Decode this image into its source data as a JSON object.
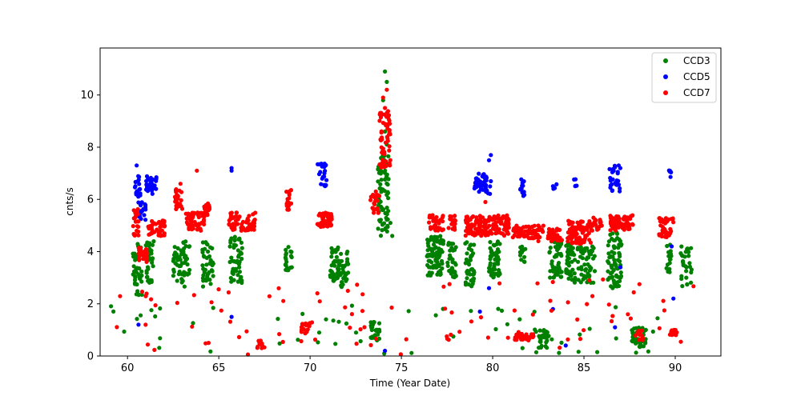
{
  "chart_data": {
    "type": "scatter",
    "title": "",
    "xlabel": "Time (Year Date)",
    "ylabel": "cnts/s",
    "xlim": [
      58.5,
      92.5
    ],
    "ylim": [
      0,
      11.8
    ],
    "xticks": [
      60,
      65,
      70,
      75,
      80,
      85,
      90
    ],
    "yticks": [
      0,
      2,
      4,
      6,
      8,
      10
    ],
    "grid": false,
    "legend_position": "top-right",
    "series": [
      {
        "name": "CCD3",
        "color": "#008000",
        "clusters": [
          {
            "x": [
              60.3,
              60.8
            ],
            "y": [
              2.3,
              4.4
            ],
            "n": 40
          },
          {
            "x": [
              61.0,
              61.5
            ],
            "y": [
              2.8,
              4.4
            ],
            "n": 35
          },
          {
            "x": [
              62.5,
              63.0
            ],
            "y": [
              2.8,
              4.2
            ],
            "n": 30
          },
          {
            "x": [
              63.0,
              63.4
            ],
            "y": [
              2.6,
              4.4
            ],
            "n": 25
          },
          {
            "x": [
              64.1,
              64.7
            ],
            "y": [
              2.6,
              4.4
            ],
            "n": 45
          },
          {
            "x": [
              65.6,
              66.3
            ],
            "y": [
              2.8,
              4.6
            ],
            "n": 50
          },
          {
            "x": [
              68.6,
              69.0
            ],
            "y": [
              3.2,
              4.2
            ],
            "n": 20
          },
          {
            "x": [
              71.1,
              71.6
            ],
            "y": [
              2.8,
              4.2
            ],
            "n": 45
          },
          {
            "x": [
              71.6,
              72.1
            ],
            "y": [
              2.6,
              4.0
            ],
            "n": 30
          },
          {
            "x": [
              73.7,
              74.3
            ],
            "y": [
              4.6,
              7.8
            ],
            "n": 70
          },
          {
            "x": [
              73.3,
              73.8
            ],
            "y": [
              0.6,
              1.3
            ],
            "n": 25
          },
          {
            "x": [
              76.4,
              77.3
            ],
            "y": [
              3.0,
              4.6
            ],
            "n": 90
          },
          {
            "x": [
              77.5,
              78.0
            ],
            "y": [
              3.0,
              4.4
            ],
            "n": 35
          },
          {
            "x": [
              78.5,
              79.0
            ],
            "y": [
              2.6,
              4.4
            ],
            "n": 45
          },
          {
            "x": [
              79.8,
              80.4
            ],
            "y": [
              3.0,
              4.4
            ],
            "n": 55
          },
          {
            "x": [
              81.5,
              81.8
            ],
            "y": [
              3.6,
              4.2
            ],
            "n": 12
          },
          {
            "x": [
              82.5,
              83.1
            ],
            "y": [
              0.3,
              1.0
            ],
            "n": 30
          },
          {
            "x": [
              83.1,
              83.8
            ],
            "y": [
              3.0,
              4.4
            ],
            "n": 45
          },
          {
            "x": [
              84.0,
              84.7
            ],
            "y": [
              2.8,
              4.4
            ],
            "n": 55
          },
          {
            "x": [
              84.8,
              85.6
            ],
            "y": [
              2.8,
              4.2
            ],
            "n": 50
          },
          {
            "x": [
              86.3,
              87.1
            ],
            "y": [
              2.6,
              4.8
            ],
            "n": 70
          },
          {
            "x": [
              87.6,
              88.4
            ],
            "y": [
              0.3,
              1.1
            ],
            "n": 45
          },
          {
            "x": [
              89.5,
              89.8
            ],
            "y": [
              3.2,
              4.4
            ],
            "n": 15
          },
          {
            "x": [
              90.3,
              90.9
            ],
            "y": [
              2.6,
              4.2
            ],
            "n": 30
          },
          {
            "x": [
              59.0,
              91.0
            ],
            "y": [
              0.05,
              2.0
            ],
            "n": 60
          }
        ],
        "points": [
          {
            "x": 74.1,
            "y": 10.9
          },
          {
            "x": 74.2,
            "y": 10.5
          },
          {
            "x": 74.0,
            "y": 9.8
          },
          {
            "x": 74.3,
            "y": 9.2
          },
          {
            "x": 74.1,
            "y": 8.6
          },
          {
            "x": 74.2,
            "y": 8.1
          },
          {
            "x": 74.5,
            "y": 4.6
          },
          {
            "x": 74.4,
            "y": 5.1
          }
        ]
      },
      {
        "name": "CCD5",
        "color": "#0000ff",
        "clusters": [
          {
            "x": [
              60.4,
              60.7
            ],
            "y": [
              6.1,
              7.0
            ],
            "n": 20
          },
          {
            "x": [
              60.6,
              61.0
            ],
            "y": [
              5.2,
              5.9
            ],
            "n": 18
          },
          {
            "x": [
              61.0,
              61.6
            ],
            "y": [
              6.2,
              6.9
            ],
            "n": 30
          },
          {
            "x": [
              70.4,
              70.9
            ],
            "y": [
              6.5,
              7.4
            ],
            "n": 25
          },
          {
            "x": [
              79.0,
              79.9
            ],
            "y": [
              6.2,
              7.0
            ],
            "n": 45
          },
          {
            "x": [
              81.5,
              81.8
            ],
            "y": [
              6.0,
              6.8
            ],
            "n": 12
          },
          {
            "x": [
              83.3,
              83.5
            ],
            "y": [
              6.4,
              6.6
            ],
            "n": 4
          },
          {
            "x": [
              84.4,
              84.6
            ],
            "y": [
              6.5,
              6.8
            ],
            "n": 5
          },
          {
            "x": [
              86.4,
              87.0
            ],
            "y": [
              6.3,
              7.3
            ],
            "n": 30
          },
          {
            "x": [
              89.6,
              89.8
            ],
            "y": [
              6.8,
              7.2
            ],
            "n": 6
          }
        ],
        "points": [
          {
            "x": 60.5,
            "y": 7.3
          },
          {
            "x": 65.7,
            "y": 7.2
          },
          {
            "x": 65.7,
            "y": 7.1
          },
          {
            "x": 79.9,
            "y": 7.7
          },
          {
            "x": 79.8,
            "y": 7.5
          },
          {
            "x": 86.9,
            "y": 7.3
          },
          {
            "x": 60.6,
            "y": 1.2
          },
          {
            "x": 61.0,
            "y": 2.3
          },
          {
            "x": 65.7,
            "y": 1.5
          },
          {
            "x": 79.8,
            "y": 2.6
          },
          {
            "x": 83.3,
            "y": 1.8
          },
          {
            "x": 87.0,
            "y": 3.4
          },
          {
            "x": 89.9,
            "y": 2.2
          },
          {
            "x": 84.0,
            "y": 0.4
          },
          {
            "x": 79.3,
            "y": 1.7
          },
          {
            "x": 74.1,
            "y": 0.2
          },
          {
            "x": 86.7,
            "y": 1.1
          },
          {
            "x": 89.8,
            "y": 4.2
          }
        ]
      },
      {
        "name": "CCD7",
        "color": "#ff0000",
        "clusters": [
          {
            "x": [
              60.3,
              60.6
            ],
            "y": [
              4.6,
              5.7
            ],
            "n": 25
          },
          {
            "x": [
              60.6,
              61.1
            ],
            "y": [
              3.6,
              4.2
            ],
            "n": 25
          },
          {
            "x": [
              61.1,
              62.1
            ],
            "y": [
              4.6,
              5.2
            ],
            "n": 40
          },
          {
            "x": [
              62.6,
              63.0
            ],
            "y": [
              5.6,
              6.4
            ],
            "n": 25
          },
          {
            "x": [
              63.2,
              64.2
            ],
            "y": [
              4.8,
              5.5
            ],
            "n": 55
          },
          {
            "x": [
              64.2,
              64.5
            ],
            "y": [
              5.4,
              6.1
            ],
            "n": 20
          },
          {
            "x": [
              65.5,
              67.0
            ],
            "y": [
              4.8,
              5.5
            ],
            "n": 60
          },
          {
            "x": [
              67.0,
              67.5
            ],
            "y": [
              0.3,
              0.6
            ],
            "n": 15
          },
          {
            "x": [
              68.7,
              69.0
            ],
            "y": [
              5.6,
              6.4
            ],
            "n": 18
          },
          {
            "x": [
              69.5,
              70.0
            ],
            "y": [
              0.8,
              1.3
            ],
            "n": 20
          },
          {
            "x": [
              70.4,
              71.2
            ],
            "y": [
              4.9,
              5.5
            ],
            "n": 45
          },
          {
            "x": [
              73.3,
              73.8
            ],
            "y": [
              5.3,
              6.2
            ],
            "n": 20
          },
          {
            "x": [
              73.8,
              74.4
            ],
            "y": [
              7.2,
              9.4
            ],
            "n": 60
          },
          {
            "x": [
              76.5,
              78.0
            ],
            "y": [
              4.8,
              5.4
            ],
            "n": 50
          },
          {
            "x": [
              78.5,
              80.9
            ],
            "y": [
              4.6,
              5.4
            ],
            "n": 150
          },
          {
            "x": [
              81.0,
              82.8
            ],
            "y": [
              4.5,
              5.0
            ],
            "n": 70
          },
          {
            "x": [
              81.2,
              82.3
            ],
            "y": [
              0.6,
              0.95
            ],
            "n": 35
          },
          {
            "x": [
              83.0,
              83.8
            ],
            "y": [
              4.4,
              4.9
            ],
            "n": 30
          },
          {
            "x": [
              84.1,
              85.4
            ],
            "y": [
              4.3,
              5.2
            ],
            "n": 90
          },
          {
            "x": [
              85.4,
              86.0
            ],
            "y": [
              4.8,
              5.3
            ],
            "n": 25
          },
          {
            "x": [
              86.4,
              87.7
            ],
            "y": [
              4.8,
              5.4
            ],
            "n": 70
          },
          {
            "x": [
              87.8,
              88.3
            ],
            "y": [
              0.6,
              1.0
            ],
            "n": 15
          },
          {
            "x": [
              89.1,
              89.9
            ],
            "y": [
              4.5,
              5.3
            ],
            "n": 40
          },
          {
            "x": [
              89.7,
              90.2
            ],
            "y": [
              0.8,
              1.0
            ],
            "n": 20
          },
          {
            "x": [
              59.0,
              91.0
            ],
            "y": [
              0.05,
              3.0
            ],
            "n": 90
          }
        ],
        "points": [
          {
            "x": 74.2,
            "y": 10.2
          },
          {
            "x": 74.1,
            "y": 9.5
          },
          {
            "x": 74.0,
            "y": 9.9
          },
          {
            "x": 63.8,
            "y": 7.1
          },
          {
            "x": 62.9,
            "y": 6.6
          },
          {
            "x": 73.6,
            "y": 6.3
          },
          {
            "x": 79.6,
            "y": 5.9
          },
          {
            "x": 82.5,
            "y": 4.4
          }
        ]
      }
    ]
  }
}
